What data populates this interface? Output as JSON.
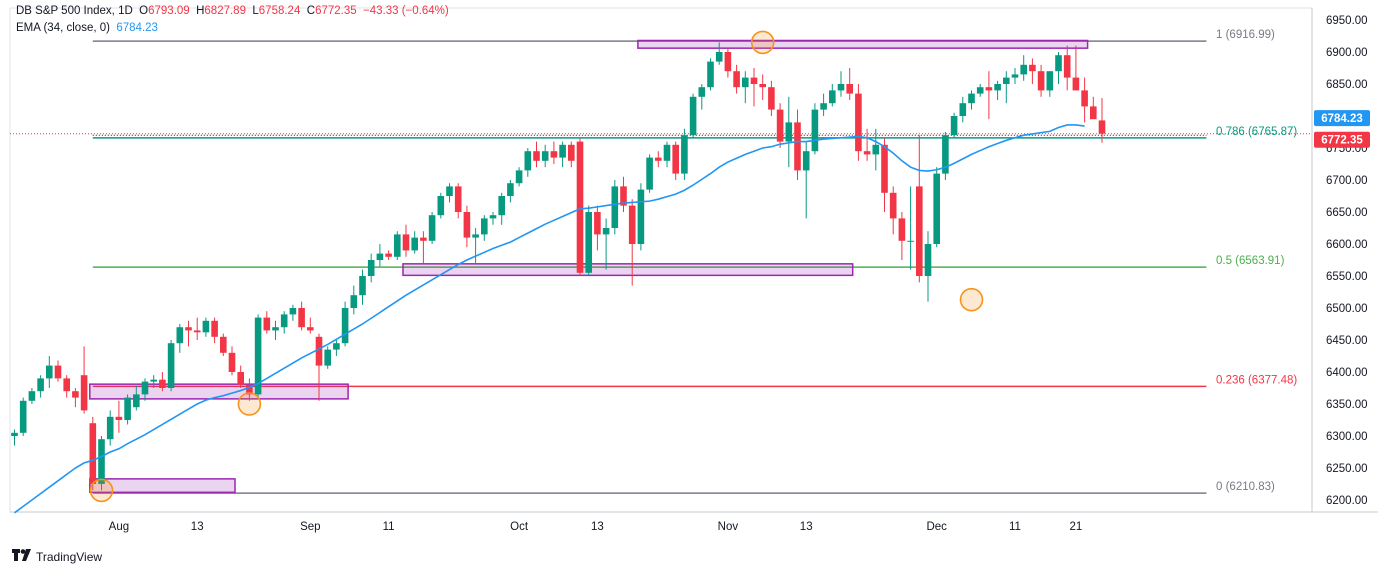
{
  "header": {
    "symbol": "DB S&P 500 Index, 1D",
    "open_label": "O",
    "open": "6793.09",
    "high_label": "H",
    "high": "6827.89",
    "low_label": "L",
    "low": "6758.24",
    "close_label": "C",
    "close": "6772.35",
    "change": "−43.33 (−0.64%)",
    "ema_label": "EMA (34, close, 0)",
    "ema_value": "6784.23"
  },
  "footer": {
    "brand": "TradingView"
  },
  "colors": {
    "up": "#089981",
    "down": "#f23645",
    "ema": "#2196f3",
    "fib_1": "#787b86",
    "fib_0786": "#089981",
    "fib_05": "#4caf50",
    "fib_0236": "#f23645",
    "fib_0": "#787b86",
    "zone": "#9c27b0",
    "circle": "#f7931a"
  },
  "chart_data": {
    "type": "candlestick",
    "title": "DB S&P 500 Index, 1D",
    "ylim": [
      6180,
      6960
    ],
    "y_ticks": [
      6200,
      6250,
      6300,
      6350,
      6400,
      6450,
      6500,
      6550,
      6600,
      6650,
      6700,
      6750,
      6800,
      6850,
      6900,
      6950
    ],
    "x_ticks": [
      {
        "label": "Aug",
        "index": 12
      },
      {
        "label": "13",
        "index": 21
      },
      {
        "label": "Sep",
        "index": 34
      },
      {
        "label": "11",
        "index": 43
      },
      {
        "label": "Oct",
        "index": 58
      },
      {
        "label": "13",
        "index": 67
      },
      {
        "label": "Nov",
        "index": 82
      },
      {
        "label": "13",
        "index": 91
      },
      {
        "label": "Dec",
        "index": 106
      },
      {
        "label": "11",
        "index": 115
      },
      {
        "label": "21",
        "index": 122
      }
    ],
    "candles": [
      [
        6300,
        6310,
        6285,
        6305
      ],
      [
        6305,
        6360,
        6300,
        6355
      ],
      [
        6355,
        6375,
        6350,
        6370
      ],
      [
        6370,
        6395,
        6360,
        6390
      ],
      [
        6390,
        6425,
        6375,
        6410
      ],
      [
        6410,
        6418,
        6385,
        6390
      ],
      [
        6390,
        6395,
        6360,
        6370
      ],
      [
        6370,
        6375,
        6345,
        6360
      ],
      [
        6395,
        6440,
        6335,
        6340
      ],
      [
        6320,
        6330,
        6215,
        6225
      ],
      [
        6225,
        6300,
        6215,
        6295
      ],
      [
        6295,
        6340,
        6285,
        6330
      ],
      [
        6330,
        6355,
        6305,
        6325
      ],
      [
        6325,
        6365,
        6318,
        6360
      ],
      [
        6345,
        6378,
        6340,
        6365
      ],
      [
        6365,
        6390,
        6355,
        6385
      ],
      [
        6385,
        6395,
        6375,
        6388
      ],
      [
        6388,
        6400,
        6370,
        6375
      ],
      [
        6375,
        6450,
        6370,
        6445
      ],
      [
        6445,
        6475,
        6430,
        6470
      ],
      [
        6470,
        6480,
        6440,
        6465
      ],
      [
        6465,
        6485,
        6450,
        6462
      ],
      [
        6462,
        6485,
        6455,
        6480
      ],
      [
        6480,
        6485,
        6445,
        6455
      ],
      [
        6455,
        6460,
        6425,
        6430
      ],
      [
        6430,
        6440,
        6395,
        6400
      ],
      [
        6400,
        6410,
        6375,
        6380
      ],
      [
        6380,
        6390,
        6355,
        6365
      ],
      [
        6365,
        6490,
        6360,
        6485
      ],
      [
        6485,
        6495,
        6460,
        6465
      ],
      [
        6465,
        6480,
        6450,
        6470
      ],
      [
        6470,
        6495,
        6460,
        6490
      ],
      [
        6490,
        6505,
        6480,
        6500
      ],
      [
        6500,
        6510,
        6465,
        6470
      ],
      [
        6470,
        6485,
        6460,
        6465
      ],
      [
        6455,
        6460,
        6355,
        6410
      ],
      [
        6410,
        6440,
        6405,
        6435
      ],
      [
        6435,
        6450,
        6425,
        6445
      ],
      [
        6445,
        6510,
        6440,
        6500
      ],
      [
        6500,
        6535,
        6490,
        6520
      ],
      [
        6520,
        6560,
        6505,
        6550
      ],
      [
        6550,
        6585,
        6540,
        6575
      ],
      [
        6575,
        6600,
        6565,
        6585
      ],
      [
        6585,
        6590,
        6575,
        6580
      ],
      [
        6580,
        6620,
        6575,
        6615
      ],
      [
        6615,
        6630,
        6580,
        6590
      ],
      [
        6590,
        6620,
        6585,
        6610
      ],
      [
        6610,
        6620,
        6570,
        6605
      ],
      [
        6605,
        6650,
        6600,
        6645
      ],
      [
        6645,
        6680,
        6640,
        6675
      ],
      [
        6675,
        6695,
        6665,
        6690
      ],
      [
        6690,
        6695,
        6640,
        6650
      ],
      [
        6650,
        6660,
        6595,
        6610
      ],
      [
        6610,
        6625,
        6570,
        6615
      ],
      [
        6615,
        6645,
        6605,
        6640
      ],
      [
        6640,
        6650,
        6630,
        6645
      ],
      [
        6645,
        6680,
        6630,
        6675
      ],
      [
        6675,
        6700,
        6665,
        6695
      ],
      [
        6695,
        6720,
        6690,
        6715
      ],
      [
        6715,
        6750,
        6705,
        6745
      ],
      [
        6745,
        6760,
        6720,
        6730
      ],
      [
        6730,
        6755,
        6720,
        6745
      ],
      [
        6745,
        6760,
        6725,
        6735
      ],
      [
        6735,
        6760,
        6720,
        6755
      ],
      [
        6755,
        6760,
        6720,
        6730
      ],
      [
        6760,
        6765,
        6550,
        6555
      ],
      [
        6555,
        6660,
        6550,
        6650
      ],
      [
        6650,
        6660,
        6590,
        6615
      ],
      [
        6615,
        6640,
        6560,
        6625
      ],
      [
        6625,
        6700,
        6615,
        6690
      ],
      [
        6690,
        6705,
        6650,
        6660
      ],
      [
        6660,
        6670,
        6535,
        6600
      ],
      [
        6600,
        6695,
        6590,
        6685
      ],
      [
        6685,
        6740,
        6680,
        6735
      ],
      [
        6735,
        6745,
        6720,
        6730
      ],
      [
        6730,
        6760,
        6720,
        6755
      ],
      [
        6755,
        6760,
        6700,
        6710
      ],
      [
        6710,
        6780,
        6700,
        6770
      ],
      [
        6770,
        6835,
        6765,
        6830
      ],
      [
        6830,
        6850,
        6810,
        6845
      ],
      [
        6845,
        6890,
        6840,
        6885
      ],
      [
        6885,
        6915,
        6880,
        6900
      ],
      [
        6900,
        6905,
        6860,
        6870
      ],
      [
        6870,
        6880,
        6835,
        6845
      ],
      [
        6845,
        6870,
        6820,
        6860
      ],
      [
        6860,
        6875,
        6815,
        6850
      ],
      [
        6850,
        6865,
        6825,
        6845
      ],
      [
        6845,
        6855,
        6800,
        6810
      ],
      [
        6810,
        6820,
        6750,
        6760
      ],
      [
        6760,
        6830,
        6720,
        6790
      ],
      [
        6790,
        6810,
        6700,
        6715
      ],
      [
        6715,
        6760,
        6640,
        6745
      ],
      [
        6745,
        6820,
        6740,
        6810
      ],
      [
        6810,
        6835,
        6800,
        6820
      ],
      [
        6820,
        6850,
        6815,
        6840
      ],
      [
        6840,
        6870,
        6830,
        6850
      ],
      [
        6850,
        6875,
        6825,
        6835
      ],
      [
        6835,
        6850,
        6730,
        6745
      ],
      [
        6745,
        6780,
        6730,
        6740
      ],
      [
        6740,
        6780,
        6715,
        6755
      ],
      [
        6755,
        6765,
        6650,
        6680
      ],
      [
        6680,
        6690,
        6615,
        6640
      ],
      [
        6640,
        6650,
        6575,
        6605
      ],
      [
        6605,
        6690,
        6560,
        6605
      ],
      [
        6690,
        6770,
        6540,
        6550
      ],
      [
        6550,
        6620,
        6510,
        6600
      ],
      [
        6600,
        6720,
        6595,
        6710
      ],
      [
        6710,
        6775,
        6700,
        6770
      ],
      [
        6770,
        6805,
        6765,
        6800
      ],
      [
        6800,
        6830,
        6790,
        6820
      ],
      [
        6820,
        6840,
        6810,
        6835
      ],
      [
        6835,
        6850,
        6830,
        6845
      ],
      [
        6845,
        6870,
        6795,
        6840
      ],
      [
        6840,
        6855,
        6825,
        6850
      ],
      [
        6850,
        6870,
        6820,
        6860
      ],
      [
        6860,
        6875,
        6850,
        6865
      ],
      [
        6865,
        6895,
        6855,
        6880
      ],
      [
        6880,
        6890,
        6850,
        6870
      ],
      [
        6870,
        6880,
        6830,
        6840
      ],
      [
        6840,
        6870,
        6830,
        6870
      ],
      [
        6870,
        6900,
        6850,
        6895
      ],
      [
        6895,
        6910,
        6840,
        6860
      ],
      [
        6860,
        6910,
        6840,
        6840
      ],
      [
        6840,
        6860,
        6790,
        6815
      ],
      [
        6815,
        6830,
        6800,
        6795
      ],
      [
        6793.09,
        6827.89,
        6758.24,
        6772.35
      ]
    ],
    "ema": {
      "name": "EMA (34, close, 0)",
      "values": [
        6180,
        6190,
        6200,
        6210,
        6220,
        6230,
        6240,
        6250,
        6258,
        6262,
        6268,
        6275,
        6280,
        6288,
        6295,
        6302,
        6310,
        6318,
        6326,
        6334,
        6342,
        6350,
        6356,
        6360,
        6363,
        6367,
        6371,
        6376,
        6382,
        6390,
        6398,
        6406,
        6414,
        6422,
        6429,
        6436,
        6443,
        6451,
        6459,
        6467,
        6475,
        6484,
        6493,
        6502,
        6511,
        6520,
        6528,
        6536,
        6544,
        6552,
        6560,
        6568,
        6575,
        6581,
        6587,
        6593,
        6598,
        6603,
        6610,
        6617,
        6624,
        6631,
        6637,
        6643,
        6649,
        6655,
        6656,
        6658,
        6660,
        6662,
        6664,
        6665,
        6666,
        6667,
        6670,
        6674,
        6678,
        6684,
        6692,
        6701,
        6710,
        6720,
        6728,
        6734,
        6740,
        6745,
        6750,
        6752,
        6756,
        6758,
        6760,
        6760,
        6762,
        6764,
        6765,
        6766,
        6767,
        6768,
        6766,
        6760,
        6752,
        6742,
        6730,
        6720,
        6715,
        6714,
        6716,
        6720,
        6726,
        6733,
        6740,
        6746,
        6752,
        6757,
        6762,
        6766,
        6770,
        6772,
        6774,
        6776,
        6782,
        6786,
        6786,
        6784.23
      ]
    },
    "fib_levels": [
      {
        "label": "1 (6916.99)",
        "value": 6916.99,
        "color": "#787b86"
      },
      {
        "label": "0.786 (6765.87)",
        "value": 6765.87,
        "color": "#089981"
      },
      {
        "label": "0.5 (6563.91)",
        "value": 6563.91,
        "color": "#4caf50"
      },
      {
        "label": "0.236 (6377.48)",
        "value": 6377.48,
        "color": "#f23645"
      },
      {
        "label": "0 (6210.83)",
        "value": 6210.83,
        "color": "#787b86"
      }
    ],
    "zones": [
      {
        "from": 9,
        "to": 38,
        "low": 6358,
        "high": 6381
      },
      {
        "from": 9,
        "to": 25,
        "low": 6212,
        "high": 6233
      },
      {
        "from": 45,
        "to": 96,
        "low": 6551,
        "high": 6569
      },
      {
        "from": 72,
        "to": 123,
        "low": 6906,
        "high": 6918
      }
    ],
    "circles": [
      {
        "index": 10,
        "value": 6215
      },
      {
        "index": 27,
        "value": 6350
      },
      {
        "index": 86,
        "value": 6915
      },
      {
        "index": 110,
        "value": 6513
      }
    ],
    "price_labels": [
      {
        "value": 6784.23,
        "text": "6784.23",
        "color": "#2196f3"
      },
      {
        "value": 6772.35,
        "text": "6772.35",
        "color": "#f23645"
      }
    ]
  }
}
